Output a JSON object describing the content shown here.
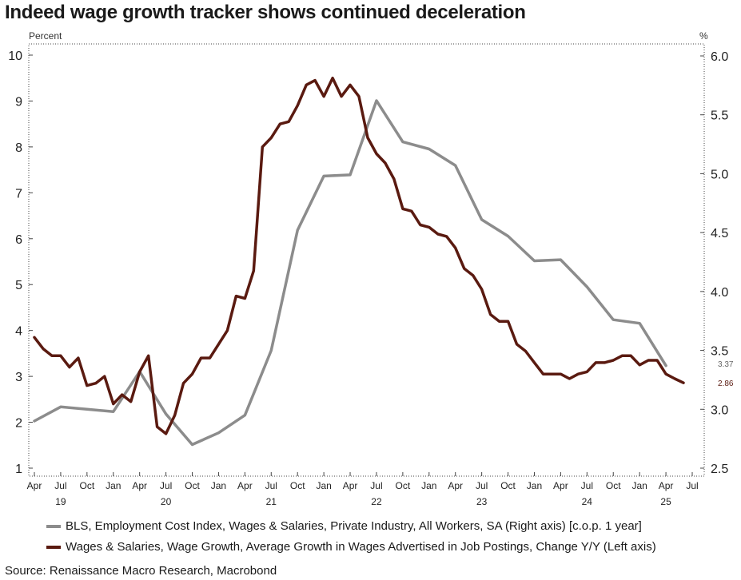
{
  "title": "Indeed wage growth tracker shows continued deceleration",
  "source": "Source: Renaissance Macro Research, Macrobond",
  "colors": {
    "ecis": "#8c8c8c",
    "indeed": "#5a1a10"
  },
  "chart_data": {
    "type": "line",
    "title": "Indeed wage growth tracker shows continued deceleration",
    "left_axis": {
      "label": "Percent",
      "ylim": [
        1,
        10
      ],
      "ticks": [
        1,
        2,
        3,
        4,
        5,
        6,
        7,
        8,
        9,
        10
      ],
      "tick_labels": [
        "1",
        "2",
        "3",
        "4",
        "5",
        "6",
        "7",
        "8",
        "9",
        "10"
      ]
    },
    "right_axis": {
      "label": "%",
      "ylim": [
        2.5,
        6.0
      ],
      "ticks": [
        2.5,
        3.0,
        3.5,
        4.0,
        4.5,
        5.0,
        5.5,
        6.0
      ],
      "tick_labels": [
        "2.5",
        "3.0",
        "3.5",
        "4.0",
        "4.5",
        "5.0",
        "5.5",
        "6.0"
      ]
    },
    "x_axis": {
      "range": [
        "2019-04",
        "2025-07"
      ],
      "month_ticks": [
        {
          "date": "2019-04",
          "label": "Apr"
        },
        {
          "date": "2019-07",
          "label": "Jul"
        },
        {
          "date": "2019-10",
          "label": "Oct"
        },
        {
          "date": "2020-01",
          "label": "Jan"
        },
        {
          "date": "2020-04",
          "label": "Apr"
        },
        {
          "date": "2020-07",
          "label": "Jul"
        },
        {
          "date": "2020-10",
          "label": "Oct"
        },
        {
          "date": "2021-01",
          "label": "Jan"
        },
        {
          "date": "2021-04",
          "label": "Apr"
        },
        {
          "date": "2021-07",
          "label": "Jul"
        },
        {
          "date": "2021-10",
          "label": "Oct"
        },
        {
          "date": "2022-01",
          "label": "Jan"
        },
        {
          "date": "2022-04",
          "label": "Apr"
        },
        {
          "date": "2022-07",
          "label": "Jul"
        },
        {
          "date": "2022-10",
          "label": "Oct"
        },
        {
          "date": "2023-01",
          "label": "Jan"
        },
        {
          "date": "2023-04",
          "label": "Apr"
        },
        {
          "date": "2023-07",
          "label": "Jul"
        },
        {
          "date": "2023-10",
          "label": "Oct"
        },
        {
          "date": "2024-01",
          "label": "Jan"
        },
        {
          "date": "2024-04",
          "label": "Apr"
        },
        {
          "date": "2024-07",
          "label": "Jul"
        },
        {
          "date": "2024-10",
          "label": "Oct"
        },
        {
          "date": "2025-01",
          "label": "Jan"
        },
        {
          "date": "2025-04",
          "label": "Apr"
        },
        {
          "date": "2025-07",
          "label": "Jul"
        }
      ],
      "year_labels": [
        {
          "date": "2019-07",
          "label": "19"
        },
        {
          "date": "2020-07",
          "label": "20"
        },
        {
          "date": "2021-07",
          "label": "21"
        },
        {
          "date": "2022-07",
          "label": "22"
        },
        {
          "date": "2023-07",
          "label": "23"
        },
        {
          "date": "2024-07",
          "label": "24"
        },
        {
          "date": "2025-04",
          "label": "25"
        }
      ]
    },
    "grid": false,
    "legend_position": "bottom",
    "series": [
      {
        "name": "BLS, Employment Cost Index, Wages & Salaries, Private Industry, All Workers, SA (Right axis) [c.o.p. 1 year]",
        "axis": "right",
        "color": "#8c8c8c",
        "end_label": "3.37",
        "x": [
          "2019-04",
          "2019-07",
          "2019-10",
          "2020-01",
          "2020-04",
          "2020-07",
          "2020-10",
          "2021-01",
          "2021-04",
          "2021-07",
          "2021-10",
          "2022-01",
          "2022-04",
          "2022-07",
          "2022-10",
          "2023-01",
          "2023-04",
          "2023-07",
          "2023-10",
          "2024-01",
          "2024-04",
          "2024-07",
          "2024-10",
          "2025-01",
          "2025-04"
        ],
        "values": [
          2.9,
          3.02,
          3.0,
          2.98,
          3.32,
          2.96,
          2.7,
          2.8,
          2.95,
          3.5,
          4.52,
          4.98,
          4.99,
          5.62,
          5.27,
          5.21,
          5.07,
          4.61,
          4.47,
          4.26,
          4.27,
          4.04,
          3.76,
          3.73,
          3.37
        ]
      },
      {
        "name": "Wages & Salaries, Wage Growth, Average Growth in Wages Advertised in Job Postings, Change Y/Y (Left axis)",
        "axis": "left",
        "color": "#5a1a10",
        "end_label": "2.86",
        "x": [
          "2019-04",
          "2019-05",
          "2019-06",
          "2019-07",
          "2019-08",
          "2019-09",
          "2019-10",
          "2019-11",
          "2019-12",
          "2020-01",
          "2020-02",
          "2020-03",
          "2020-04",
          "2020-05",
          "2020-06",
          "2020-07",
          "2020-08",
          "2020-09",
          "2020-10",
          "2020-11",
          "2020-12",
          "2021-01",
          "2021-02",
          "2021-03",
          "2021-04",
          "2021-05",
          "2021-06",
          "2021-07",
          "2021-08",
          "2021-09",
          "2021-10",
          "2021-11",
          "2021-12",
          "2022-01",
          "2022-02",
          "2022-03",
          "2022-04",
          "2022-05",
          "2022-06",
          "2022-07",
          "2022-08",
          "2022-09",
          "2022-10",
          "2022-11",
          "2022-12",
          "2023-01",
          "2023-02",
          "2023-03",
          "2023-04",
          "2023-05",
          "2023-06",
          "2023-07",
          "2023-08",
          "2023-09",
          "2023-10",
          "2023-11",
          "2023-12",
          "2024-01",
          "2024-02",
          "2024-03",
          "2024-04",
          "2024-05",
          "2024-06",
          "2024-07",
          "2024-08",
          "2024-09",
          "2024-10",
          "2024-11",
          "2024-12",
          "2025-01",
          "2025-02",
          "2025-03",
          "2025-04",
          "2025-05",
          "2025-06"
        ],
        "values": [
          3.85,
          3.6,
          3.45,
          3.45,
          3.2,
          3.4,
          2.8,
          2.85,
          3.0,
          2.4,
          2.6,
          2.45,
          3.1,
          3.45,
          1.9,
          1.75,
          2.15,
          2.85,
          3.05,
          3.4,
          3.4,
          3.7,
          4.0,
          4.75,
          4.7,
          5.3,
          8.0,
          8.2,
          8.5,
          8.55,
          8.9,
          9.35,
          9.45,
          9.1,
          9.5,
          9.1,
          9.35,
          9.1,
          8.2,
          7.85,
          7.65,
          7.3,
          6.65,
          6.6,
          6.3,
          6.25,
          6.1,
          6.05,
          5.8,
          5.35,
          5.2,
          4.9,
          4.35,
          4.2,
          4.2,
          3.7,
          3.55,
          3.3,
          3.05,
          3.05,
          3.05,
          2.95,
          3.05,
          3.1,
          3.3,
          3.3,
          3.35,
          3.45,
          3.45,
          3.25,
          3.35,
          3.35,
          3.05,
          2.95,
          2.86
        ]
      }
    ]
  }
}
